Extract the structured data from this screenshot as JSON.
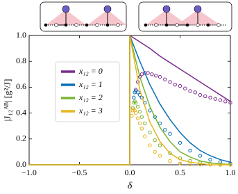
{
  "chart_data": {
    "type": "line",
    "xlabel": "δ",
    "ylabel": "|J₁₂ᴬᴮ| [g²/J]",
    "xlim": [
      -1,
      1
    ],
    "ylim": [
      0,
      1
    ],
    "xticks": [
      {
        "value": -1,
        "label": "−1.0"
      },
      {
        "value": -0.5,
        "label": "−0.5"
      },
      {
        "value": 0,
        "label": "0.0"
      },
      {
        "value": 0.5,
        "label": "0.5"
      },
      {
        "value": 1,
        "label": "1.0"
      }
    ],
    "yticks": [
      {
        "value": 0,
        "label": "0.0"
      },
      0.2,
      0.4,
      0.6,
      0.8,
      {
        "value": 1,
        "label": "1.0"
      }
    ],
    "legend": "center left",
    "series": [
      {
        "name": "x₁₂ = 0",
        "color": "#7b2d8e",
        "line": {
          "x": [
            -1,
            0,
            0,
            0.1,
            0.2,
            0.3,
            0.4,
            0.5,
            0.6,
            0.7,
            0.8,
            0.9,
            1.0
          ],
          "values": [
            0,
            0,
            1,
            0.95,
            0.9,
            0.84,
            0.79,
            0.74,
            0.69,
            0.64,
            0.59,
            0.54,
            0.49
          ]
        },
        "points": {
          "x": [
            0.06,
            0.08,
            0.1,
            0.12,
            0.15,
            0.18,
            0.22,
            0.26,
            0.3,
            0.35,
            0.4,
            0.45,
            0.5,
            0.55,
            0.6,
            0.65,
            0.7,
            0.75,
            0.8,
            0.85,
            0.9,
            0.95,
            1.0
          ],
          "values": [
            0.58,
            0.64,
            0.68,
            0.7,
            0.71,
            0.71,
            0.7,
            0.69,
            0.68,
            0.66,
            0.64,
            0.62,
            0.61,
            0.59,
            0.57,
            0.56,
            0.54,
            0.53,
            0.52,
            0.51,
            0.5,
            0.49,
            0.48
          ]
        }
      },
      {
        "name": "x₁₂ = 1",
        "color": "#0a6fb8",
        "line": {
          "x": [
            -1,
            0,
            0,
            0.1,
            0.2,
            0.3,
            0.4,
            0.5,
            0.6,
            0.7,
            0.8,
            0.9,
            1.0
          ],
          "values": [
            0,
            0,
            1,
            0.8,
            0.62,
            0.47,
            0.35,
            0.25,
            0.17,
            0.11,
            0.07,
            0.04,
            0.02
          ]
        },
        "points": {
          "x": [
            0.04,
            0.05,
            0.06,
            0.08,
            0.1,
            0.12,
            0.15,
            0.2,
            0.25,
            0.3,
            0.35,
            0.4,
            0.5,
            0.6,
            0.7,
            0.8,
            0.9,
            1.0
          ],
          "values": [
            0.52,
            0.56,
            0.57,
            0.56,
            0.54,
            0.52,
            0.48,
            0.42,
            0.37,
            0.32,
            0.27,
            0.24,
            0.17,
            0.11,
            0.07,
            0.04,
            0.02,
            0.01
          ]
        }
      },
      {
        "name": "x₁₂ = 2",
        "color": "#7ab535",
        "line": {
          "x": [
            -1,
            0,
            0,
            0.1,
            0.2,
            0.3,
            0.4,
            0.5,
            0.6,
            0.7,
            0.8,
            0.9,
            1.0
          ],
          "values": [
            0,
            0,
            1,
            0.68,
            0.45,
            0.29,
            0.18,
            0.1,
            0.06,
            0.03,
            0.015,
            0.007,
            0.003
          ]
        },
        "points": {
          "x": [
            0.03,
            0.04,
            0.05,
            0.06,
            0.08,
            0.1,
            0.12,
            0.15,
            0.2,
            0.25,
            0.3,
            0.4,
            0.5,
            0.6,
            0.7,
            0.8,
            0.9,
            1.0
          ],
          "values": [
            0.44,
            0.48,
            0.49,
            0.48,
            0.45,
            0.41,
            0.37,
            0.32,
            0.25,
            0.19,
            0.15,
            0.09,
            0.05,
            0.03,
            0.015,
            0.008,
            0.004,
            0.002
          ]
        }
      },
      {
        "name": "x₁₂ = 3",
        "color": "#e8b520",
        "line": {
          "x": [
            -1,
            0,
            0,
            0.1,
            0.2,
            0.3,
            0.4,
            0.5,
            0.6,
            0.7,
            0.8,
            0.9,
            1.0
          ],
          "values": [
            0,
            0,
            1,
            0.58,
            0.33,
            0.18,
            0.09,
            0.04,
            0.02,
            0.01,
            0,
            0,
            0
          ]
        },
        "points": {
          "x": [
            0.02,
            0.03,
            0.04,
            0.05,
            0.06,
            0.08,
            0.1,
            0.12,
            0.15,
            0.2,
            0.25,
            0.3,
            0.4,
            0.5,
            0.6,
            0.7,
            0.8,
            0.9,
            1.0
          ],
          "values": [
            0.38,
            0.42,
            0.43,
            0.42,
            0.4,
            0.36,
            0.32,
            0.28,
            0.22,
            0.15,
            0.1,
            0.07,
            0.03,
            0.01,
            0.005,
            0.002,
            0.001,
            0,
            0
          ]
        }
      }
    ]
  }
}
